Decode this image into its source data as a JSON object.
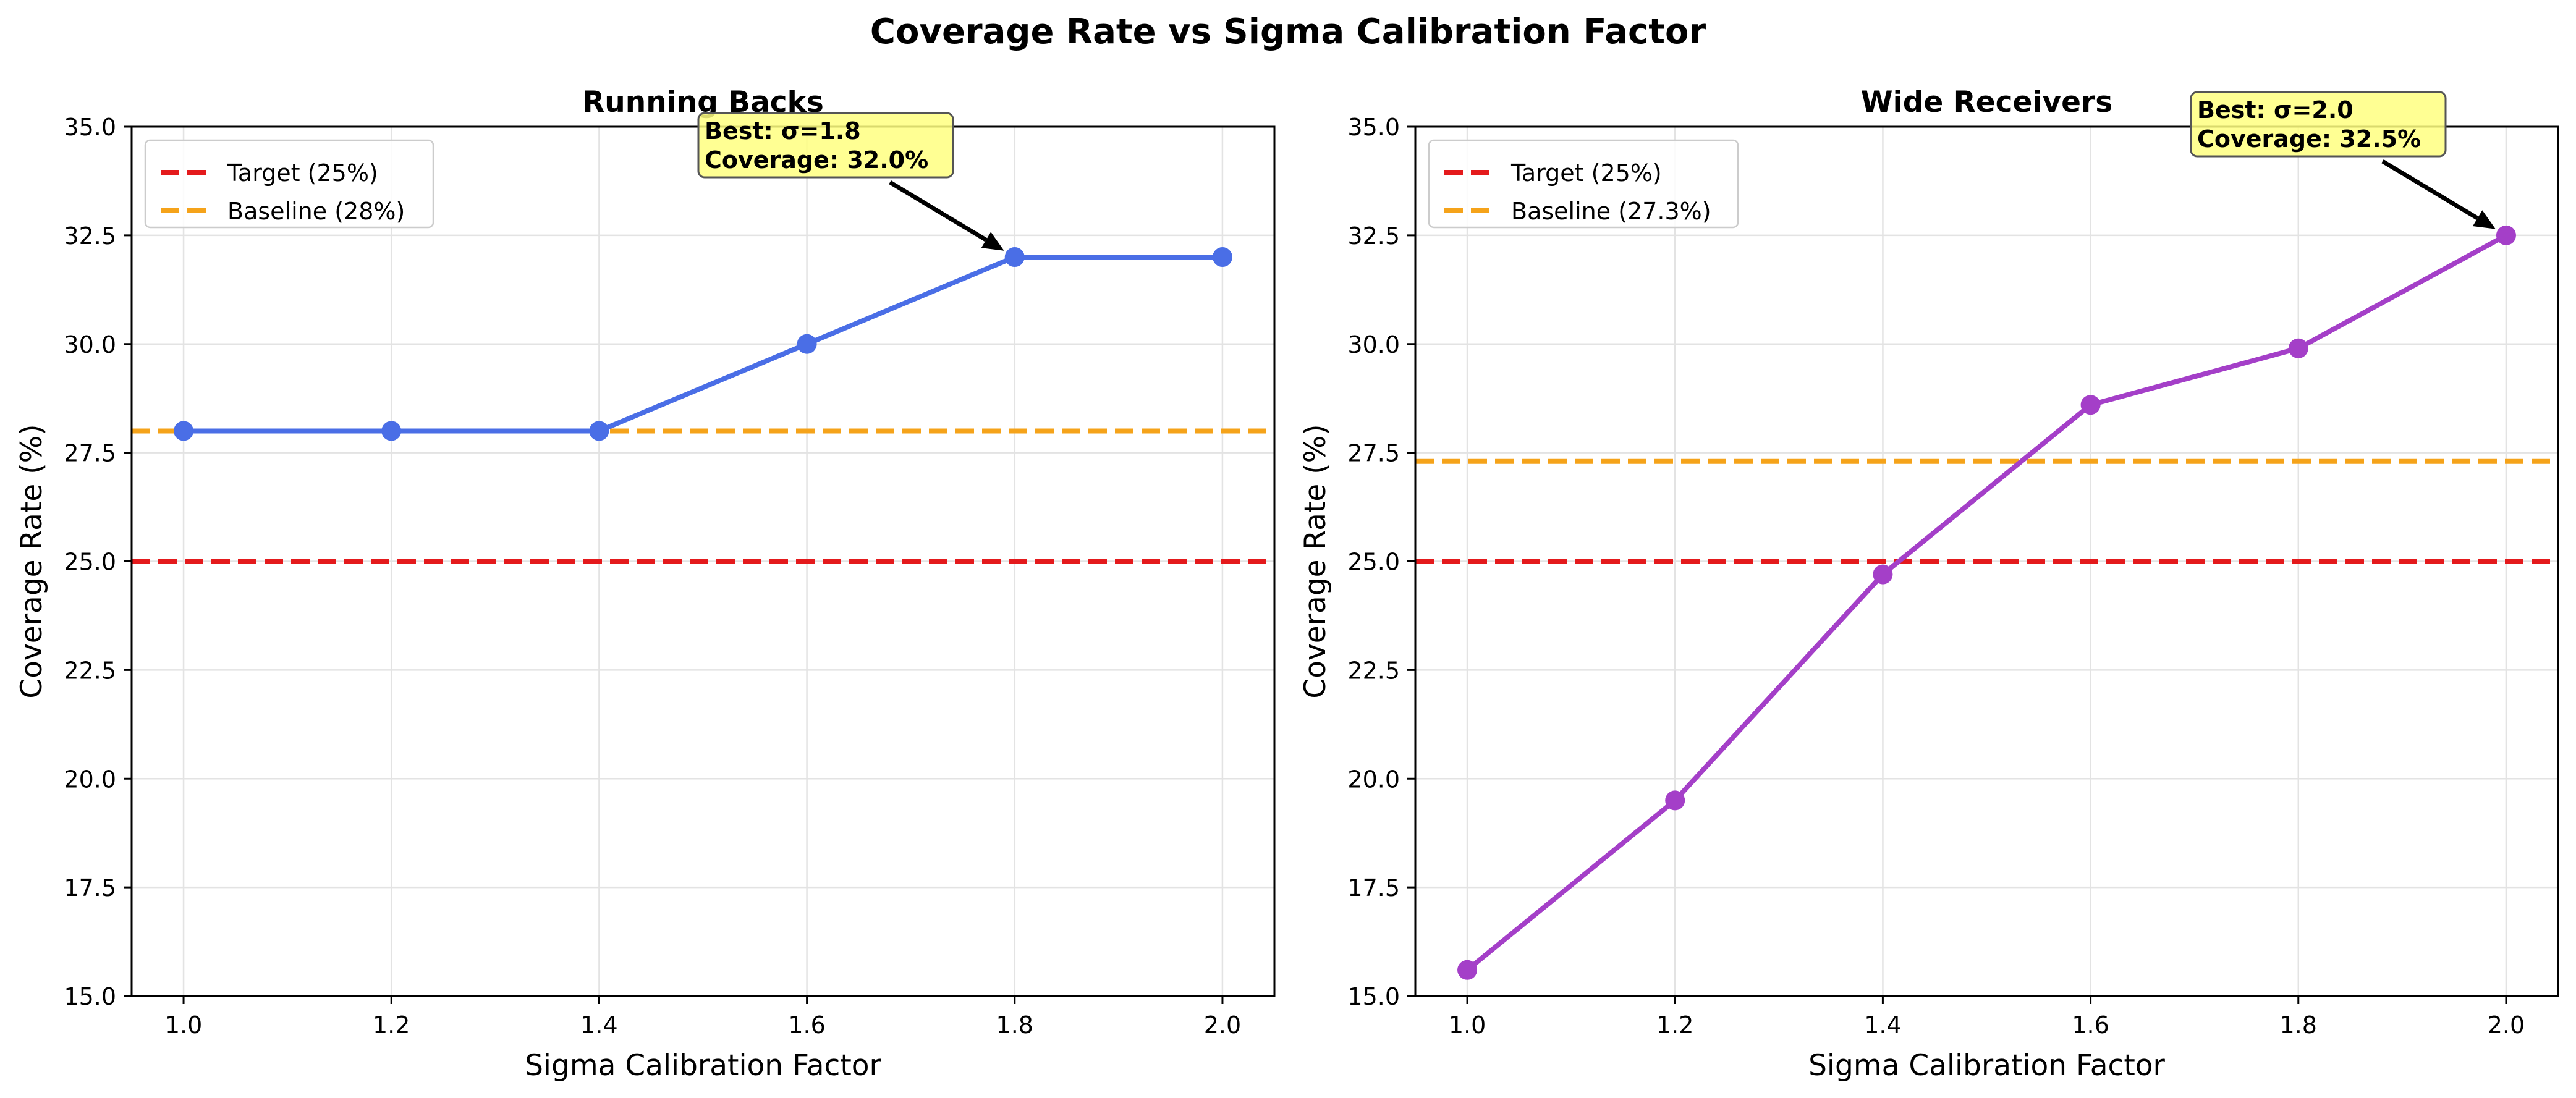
{
  "figure_title": "Coverage Rate vs Sigma Calibration Factor",
  "chart_data": [
    {
      "type": "line",
      "title": "Running Backs",
      "xlabel": "Sigma Calibration Factor",
      "ylabel": "Coverage Rate (%)",
      "xlim": [
        0.95,
        2.05
      ],
      "ylim": [
        15.0,
        35.0
      ],
      "xticks": [
        "1.0",
        "1.2",
        "1.4",
        "1.6",
        "1.8",
        "2.0"
      ],
      "yticks": [
        "15.0",
        "17.5",
        "20.0",
        "22.5",
        "25.0",
        "27.5",
        "30.0",
        "32.5",
        "35.0"
      ],
      "grid": true,
      "legend_position": "upper-left",
      "series": [
        {
          "x": [
            1.0,
            1.2,
            1.4,
            1.6,
            1.8,
            2.0
          ],
          "values": [
            28.0,
            28.0,
            28.0,
            30.0,
            32.0,
            32.0
          ],
          "color": "#4a6ee6"
        }
      ],
      "reference_lines": [
        {
          "name": "Target (25%)",
          "y": 25.0,
          "color": "#e41a1c",
          "style": "dashed"
        },
        {
          "name": "Baseline (28%)",
          "y": 28.0,
          "color": "#f5a31a",
          "style": "dashed"
        }
      ],
      "annotation": {
        "lines": [
          "Best: σ=1.8",
          "Coverage: 32.0%"
        ],
        "x": 1.8,
        "y": 32.0,
        "box_color": "#ffff80"
      }
    },
    {
      "type": "line",
      "title": "Wide Receivers",
      "xlabel": "Sigma Calibration Factor",
      "ylabel": "Coverage Rate (%)",
      "xlim": [
        0.95,
        2.05
      ],
      "ylim": [
        15.0,
        35.0
      ],
      "xticks": [
        "1.0",
        "1.2",
        "1.4",
        "1.6",
        "1.8",
        "2.0"
      ],
      "yticks": [
        "15.0",
        "17.5",
        "20.0",
        "22.5",
        "25.0",
        "27.5",
        "30.0",
        "32.5",
        "35.0"
      ],
      "grid": true,
      "legend_position": "upper-left",
      "series": [
        {
          "x": [
            1.0,
            1.2,
            1.4,
            1.6,
            1.8,
            2.0
          ],
          "values": [
            15.6,
            19.5,
            24.7,
            28.6,
            29.9,
            32.5
          ],
          "color": "#a43fc8"
        }
      ],
      "reference_lines": [
        {
          "name": "Target (25%)",
          "y": 25.0,
          "color": "#e41a1c",
          "style": "dashed"
        },
        {
          "name": "Baseline (27.3%)",
          "y": 27.3,
          "color": "#f5a31a",
          "style": "dashed"
        }
      ],
      "annotation": {
        "lines": [
          "Best: σ=2.0",
          "Coverage: 32.5%"
        ],
        "x": 2.0,
        "y": 32.5,
        "box_color": "#ffff80"
      }
    }
  ]
}
